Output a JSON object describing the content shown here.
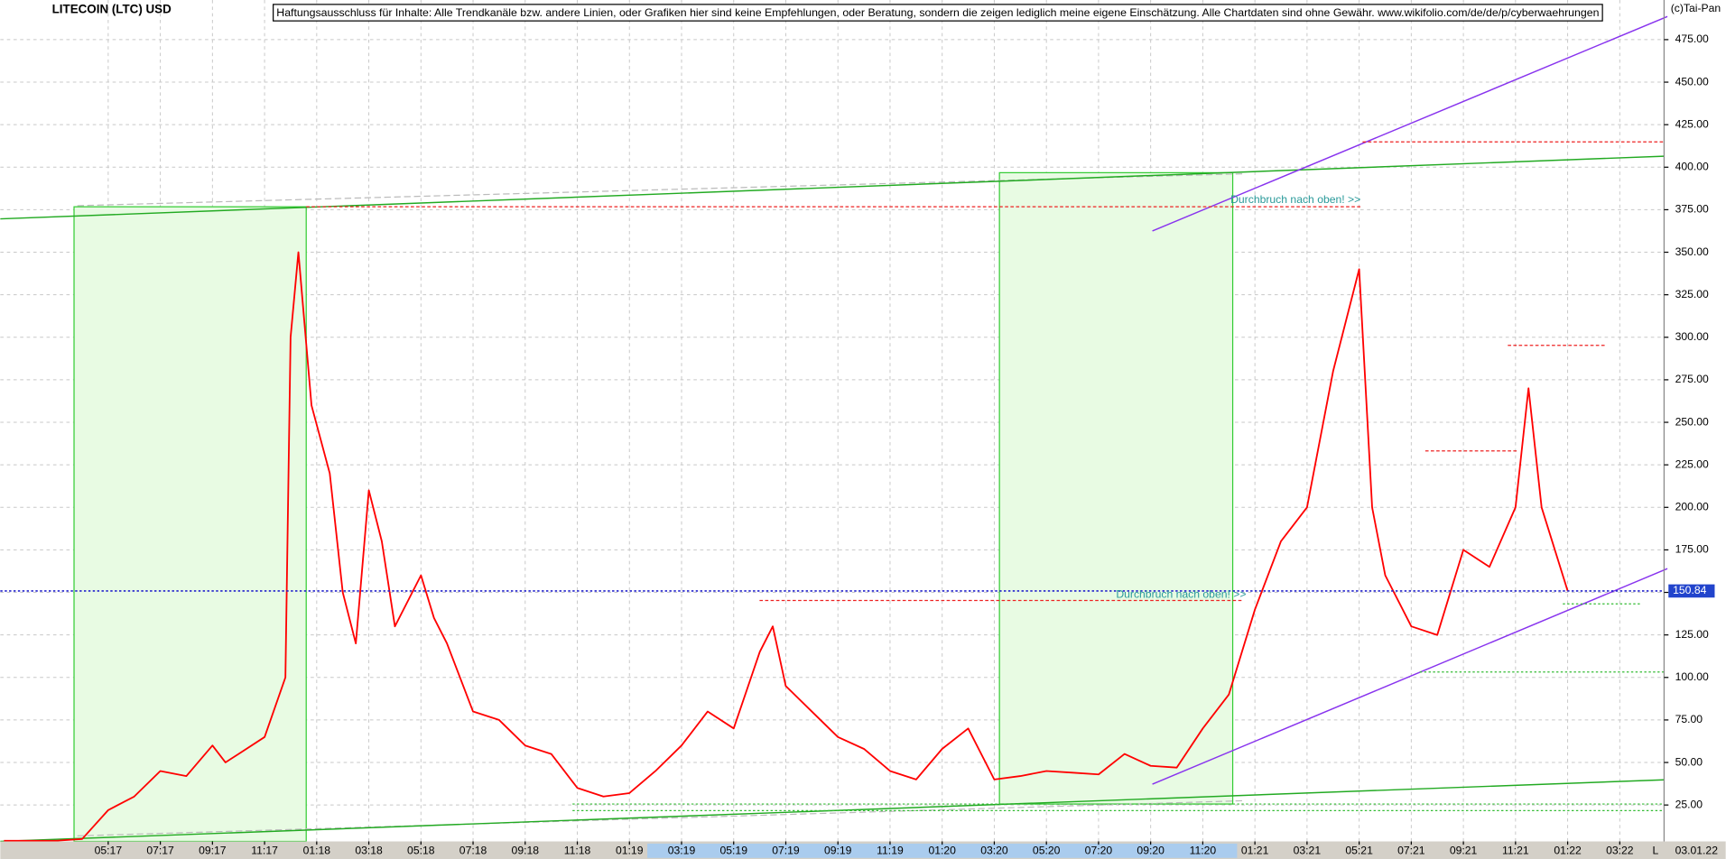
{
  "chart_data": {
    "type": "line",
    "title": "LITECOIN (LTC) USD",
    "copyright": "(c)Tai-Pan",
    "disclaimer": "Haftungsausschluss für Inhalte: Alle Trendkanäle bzw. andere Linien, oder Grafiken hier sind keine Empfehlungen, oder Beratung, sondern die zeigen lediglich meine eigene Einschätzung. Alle Chartdaten sind ohne Gewähr.  www.wikifolio.com/de/de/p/cyberwaehrungen",
    "annotations": [
      "Durchbruch nach oben! >>",
      "Durchbruch nach oben! >>"
    ],
    "last_value": 150.84,
    "date_label": "03.01.22",
    "scale_label": "L",
    "color": "#ff0000",
    "x": [
      0,
      2,
      3,
      4,
      5,
      6,
      7,
      8,
      8.5,
      9,
      10,
      10.8,
      11,
      11.3,
      11.8,
      12.5,
      13,
      13.5,
      14,
      14.5,
      15,
      16,
      16.5,
      17,
      18,
      19,
      20,
      21,
      22,
      23,
      24,
      25,
      26,
      27,
      28,
      29,
      29.5,
      30,
      31,
      32,
      33,
      34,
      35,
      36,
      37,
      38,
      39,
      40,
      41,
      42,
      43,
      44,
      45,
      46,
      47,
      48,
      49,
      50,
      51,
      52,
      52.5,
      53,
      54,
      55,
      56,
      57,
      58,
      58.5,
      59,
      60
    ],
    "values": [
      4,
      4,
      5,
      22,
      30,
      45,
      42,
      60,
      50,
      55,
      65,
      100,
      300,
      350,
      260,
      220,
      150,
      120,
      210,
      180,
      130,
      160,
      135,
      120,
      80,
      75,
      60,
      55,
      35,
      30,
      32,
      45,
      60,
      80,
      70,
      115,
      130,
      95,
      80,
      65,
      58,
      45,
      40,
      58,
      70,
      40,
      42,
      45,
      44,
      43,
      55,
      48,
      47,
      70,
      90,
      140,
      180,
      200,
      280,
      340,
      200,
      160,
      130,
      125,
      175,
      165,
      200,
      270,
      200,
      150.84
    ],
    "xlim": [
      -0.14,
      63.7
    ],
    "ylim": [
      3.6,
      498.3
    ],
    "xticks": [
      {
        "value": 4,
        "label": "05:17"
      },
      {
        "value": 6,
        "label": "07:17"
      },
      {
        "value": 8,
        "label": "09:17"
      },
      {
        "value": 10,
        "label": "11:17"
      },
      {
        "value": 12,
        "label": "01:18"
      },
      {
        "value": 14,
        "label": "03:18"
      },
      {
        "value": 16,
        "label": "05:18"
      },
      {
        "value": 18,
        "label": "07:18"
      },
      {
        "value": 20,
        "label": "09:18"
      },
      {
        "value": 22,
        "label": "11:18"
      },
      {
        "value": 24,
        "label": "01:19"
      },
      {
        "value": 26,
        "label": "03:19"
      },
      {
        "value": 28,
        "label": "05:19"
      },
      {
        "value": 30,
        "label": "07:19"
      },
      {
        "value": 32,
        "label": "09:19"
      },
      {
        "value": 34,
        "label": "11:19"
      },
      {
        "value": 36,
        "label": "01:20"
      },
      {
        "value": 38,
        "label": "03:20"
      },
      {
        "value": 40,
        "label": "05:20"
      },
      {
        "value": 42,
        "label": "07:20"
      },
      {
        "value": 44,
        "label": "09:20"
      },
      {
        "value": 46,
        "label": "11:20"
      },
      {
        "value": 48,
        "label": "01:21"
      },
      {
        "value": 50,
        "label": "03:21"
      },
      {
        "value": 52,
        "label": "05:21"
      },
      {
        "value": 54,
        "label": "07:21"
      },
      {
        "value": 56,
        "label": "09:21"
      },
      {
        "value": 58,
        "label": "11:21"
      },
      {
        "value": 60,
        "label": "01:22"
      },
      {
        "value": 62,
        "label": "03:22"
      }
    ],
    "yticks": [
      {
        "value": 25,
        "label": "25.00"
      },
      {
        "value": 50,
        "label": "50.00"
      },
      {
        "value": 75,
        "label": "75.00"
      },
      {
        "value": 100,
        "label": "100.00"
      },
      {
        "value": 125,
        "label": "125.00"
      },
      {
        "value": 150,
        "label": "150.00"
      },
      {
        "value": 175,
        "label": "175.00"
      },
      {
        "value": 200,
        "label": "200.00"
      },
      {
        "value": 225,
        "label": "225.00"
      },
      {
        "value": 250,
        "label": "250.00"
      },
      {
        "value": 275,
        "label": "275.00"
      },
      {
        "value": 300,
        "label": "300.00"
      },
      {
        "value": 325,
        "label": "325.00"
      },
      {
        "value": 350,
        "label": "350.00"
      },
      {
        "value": 375,
        "label": "375.00"
      },
      {
        "value": 400,
        "label": "400.00"
      },
      {
        "value": 425,
        "label": "425.00"
      },
      {
        "value": 450,
        "label": "450.00"
      },
      {
        "value": 475,
        "label": "475.00"
      }
    ],
    "grid": true
  }
}
